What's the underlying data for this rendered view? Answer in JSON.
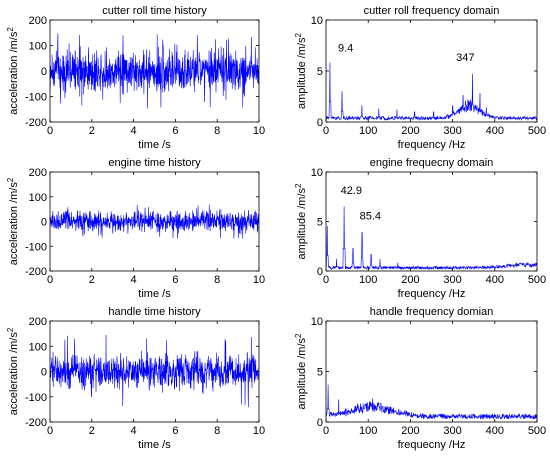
{
  "chart_data": [
    {
      "type": "line",
      "title": "cutter roll time history",
      "xlabel": "time /s",
      "ylabel": "acceleration /m/s",
      "ylabel_sup": "2",
      "xlim": [
        0,
        10
      ],
      "ylim": [
        -200,
        200
      ],
      "xticks": [
        0,
        2,
        4,
        6,
        8,
        10
      ],
      "yticks": [
        -200,
        -100,
        0,
        100,
        200
      ],
      "color": "#0000ff",
      "signal": {
        "kind": "time",
        "mean": 0,
        "amplitude": 100,
        "peak": 150
      },
      "annotations": []
    },
    {
      "type": "line",
      "title": "cutter roll frequency domain",
      "xlabel": "frequency /Hz",
      "ylabel": "amplitude /m/s",
      "ylabel_sup": "2",
      "xlim": [
        0,
        500
      ],
      "ylim": [
        0,
        10
      ],
      "xticks": [
        0,
        100,
        200,
        300,
        400,
        500
      ],
      "yticks": [
        0,
        5,
        10
      ],
      "color": "#0000ff",
      "signal": {
        "kind": "freq",
        "floor": 0.35,
        "peaks": [
          [
            9.4,
            5.8
          ],
          [
            38,
            3.0
          ],
          [
            85,
            1.6
          ],
          [
            125,
            1.3
          ],
          [
            168,
            1.2
          ],
          [
            210,
            1.0
          ],
          [
            255,
            1.0
          ],
          [
            300,
            1.6
          ],
          [
            325,
            2.6
          ],
          [
            347,
            4.7
          ],
          [
            365,
            2.8
          ],
          [
            380,
            1.4
          ]
        ],
        "hump": {
          "center": 340,
          "width": 35,
          "height": 1.2
        }
      },
      "annotations": [
        {
          "text": "9.4",
          "x": 9.4,
          "y": 6.9
        },
        {
          "text": "347",
          "x": 330,
          "y": 6.0
        }
      ]
    },
    {
      "type": "line",
      "title": "engine time history",
      "xlabel": "time /s",
      "ylabel": "acceleration /m/s",
      "ylabel_sup": "2",
      "xlim": [
        0,
        10
      ],
      "ylim": [
        -200,
        200
      ],
      "xticks": [
        0,
        2,
        4,
        6,
        8,
        10
      ],
      "yticks": [
        -200,
        -100,
        0,
        100,
        200
      ],
      "color": "#0000ff",
      "signal": {
        "kind": "time",
        "mean": 0,
        "amplitude": 50,
        "peak": 70
      },
      "annotations": []
    },
    {
      "type": "line",
      "title": "engine frequecny domain",
      "xlabel": "frequency /Hz",
      "ylabel": "amplitude /m/s",
      "ylabel_sup": "2",
      "xlim": [
        0,
        500
      ],
      "ylim": [
        0,
        10
      ],
      "xticks": [
        0,
        100,
        200,
        300,
        400,
        500
      ],
      "yticks": [
        0,
        5,
        10
      ],
      "color": "#0000ff",
      "signal": {
        "kind": "freq",
        "floor": 0.3,
        "peaks": [
          [
            3,
            4.5
          ],
          [
            25,
            1.2
          ],
          [
            42.9,
            6.5
          ],
          [
            64,
            2.3
          ],
          [
            85.4,
            3.9
          ],
          [
            107,
            1.7
          ],
          [
            128,
            1.2
          ],
          [
            170,
            0.8
          ]
        ],
        "hump": {
          "center": 470,
          "width": 60,
          "height": 0.3
        }
      },
      "annotations": [
        {
          "text": "42.9",
          "x": 60,
          "y": 7.8
        },
        {
          "text": "85.4",
          "x": 105,
          "y": 5.2
        }
      ]
    },
    {
      "type": "line",
      "title": "handle time history",
      "xlabel": "time /s",
      "ylabel": "acceleration /m/s",
      "ylabel_sup": "2",
      "xlim": [
        0,
        10
      ],
      "ylim": [
        -200,
        200
      ],
      "xticks": [
        0,
        2,
        4,
        6,
        8,
        10
      ],
      "yticks": [
        -200,
        -100,
        0,
        100,
        200
      ],
      "color": "#0000ff",
      "signal": {
        "kind": "time",
        "mean": 0,
        "amplitude": 80,
        "peak": 150
      },
      "annotations": []
    },
    {
      "type": "line",
      "title": "handle frequency domian",
      "xlabel": "frequecny /Hz",
      "ylabel": "amplitude /m/s",
      "ylabel_sup": "2",
      "xlim": [
        0,
        500
      ],
      "ylim": [
        0,
        10
      ],
      "xticks": [
        0,
        100,
        200,
        300,
        400,
        500
      ],
      "yticks": [
        0,
        5,
        10
      ],
      "color": "#0000ff",
      "signal": {
        "kind": "freq",
        "floor": 0.5,
        "peaks": [
          [
            5,
            3.7
          ],
          [
            30,
            2.2
          ],
          [
            75,
            1.8
          ],
          [
            110,
            2.3
          ],
          [
            130,
            1.9
          ],
          [
            160,
            1.4
          ]
        ],
        "hump": {
          "center": 110,
          "width": 70,
          "height": 0.9
        }
      },
      "annotations": []
    }
  ]
}
